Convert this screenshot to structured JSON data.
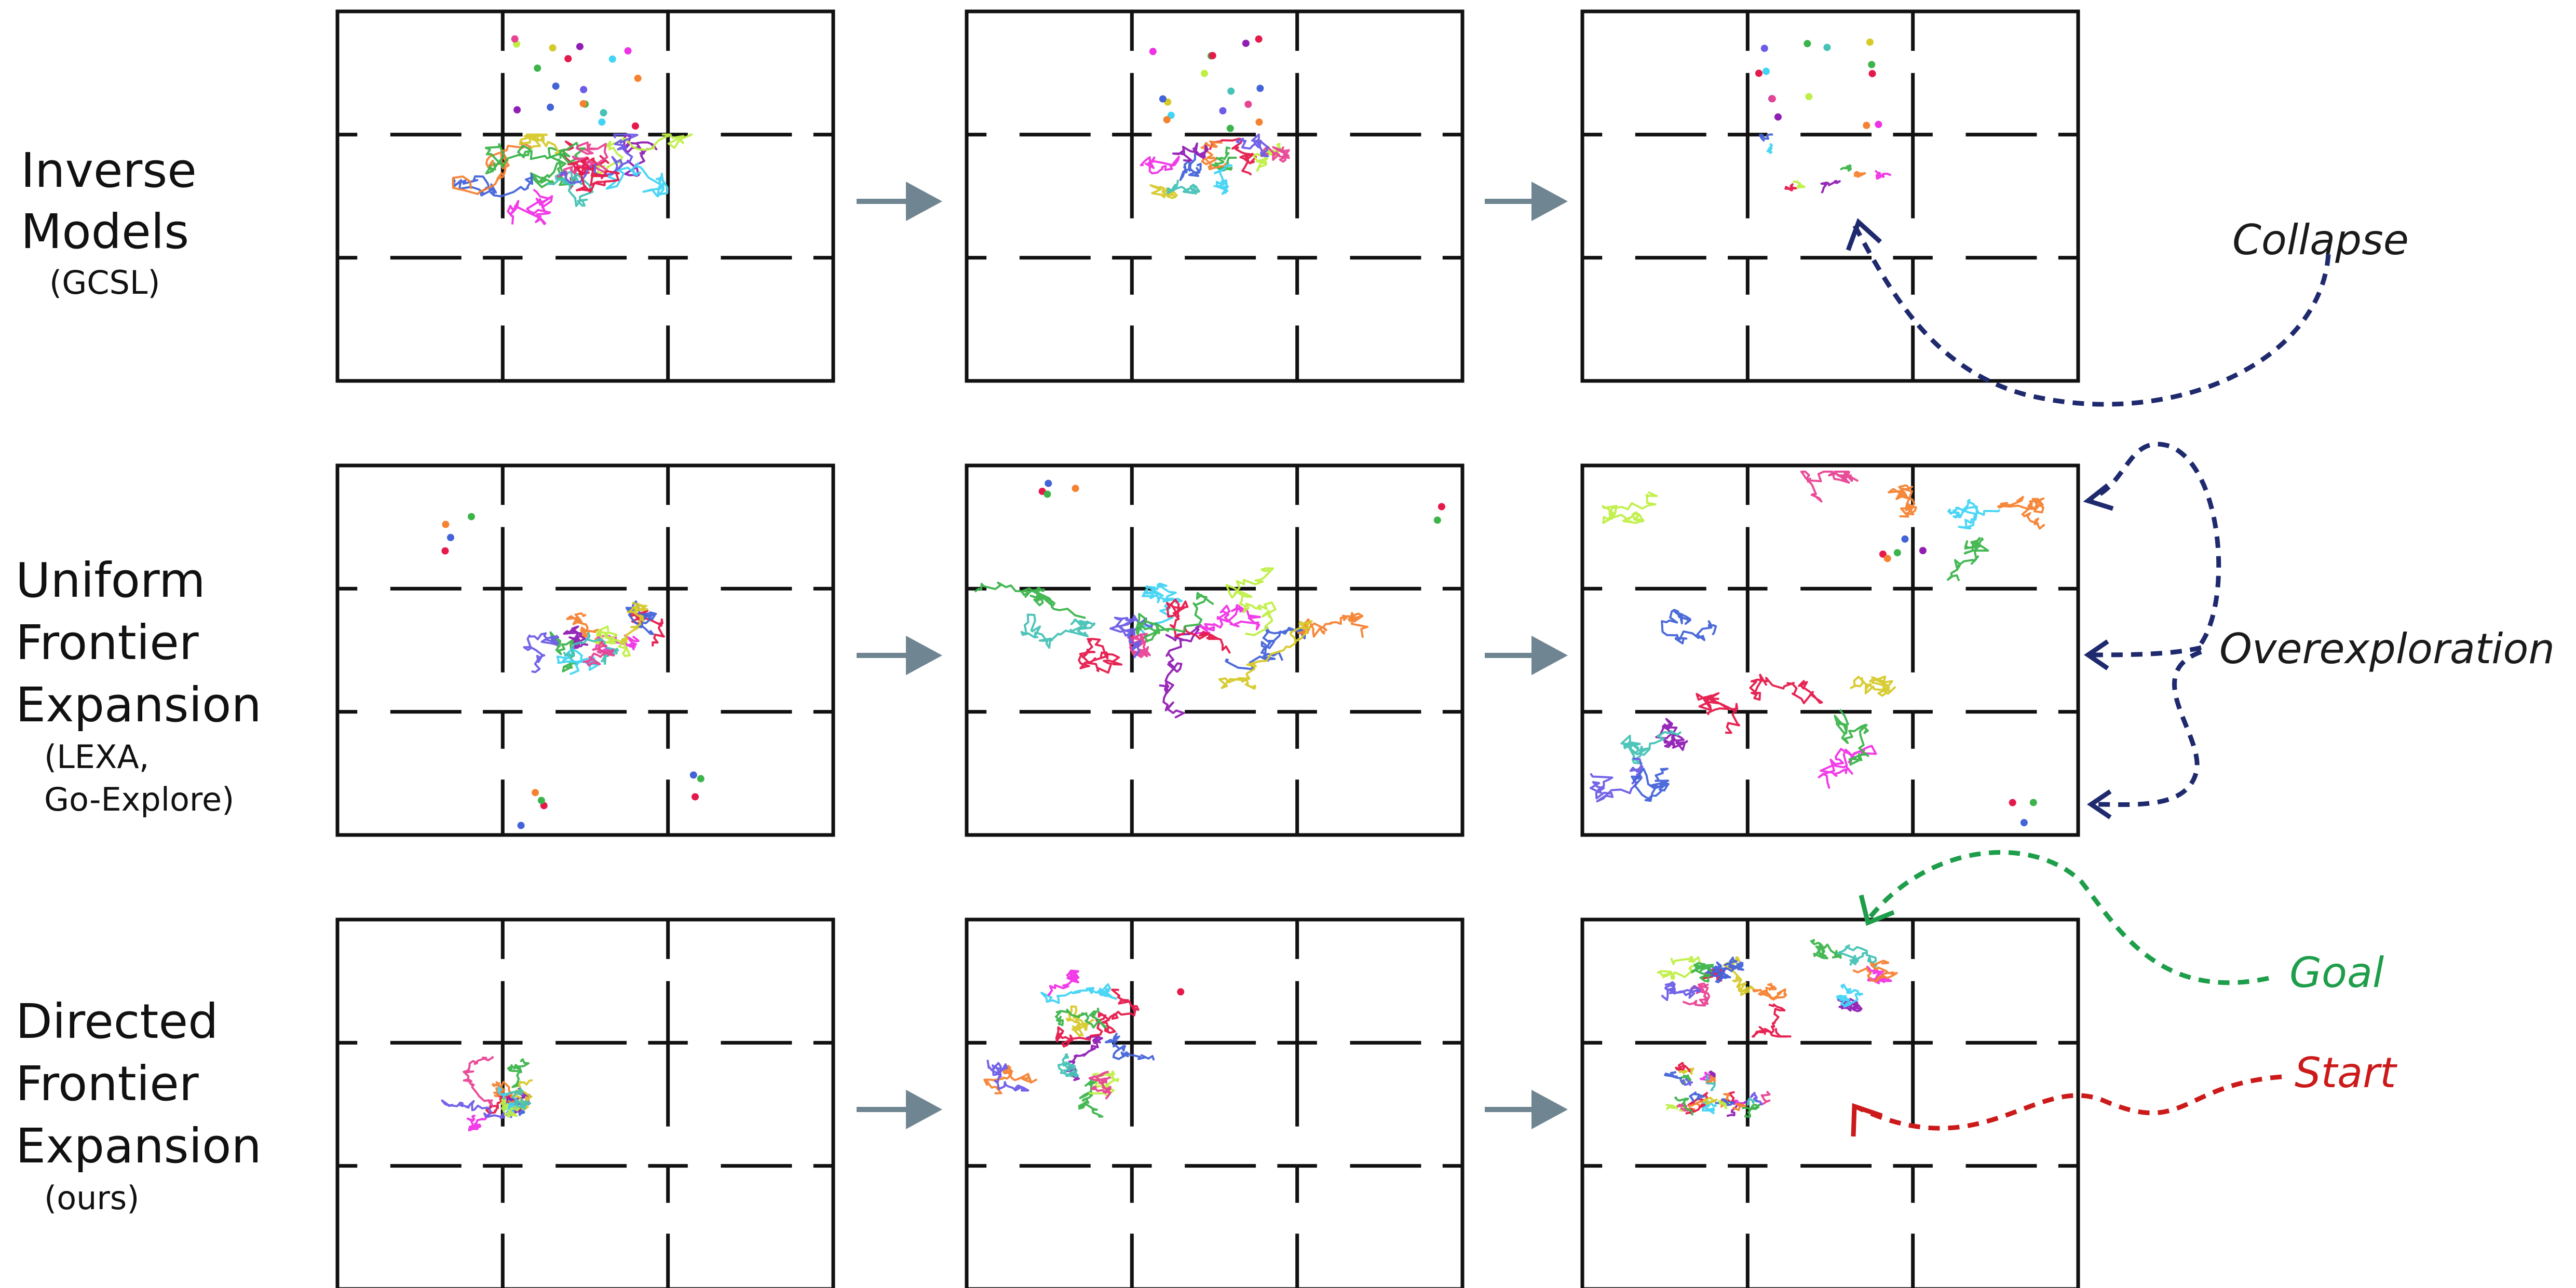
{
  "rows": [
    {
      "id": "inverse",
      "label_lines": [
        "Inverse",
        "Models"
      ],
      "sub_lines": [
        "(GCSL)"
      ],
      "mode": "collapse"
    },
    {
      "id": "uniform",
      "label_lines": [
        "Uniform",
        "Frontier",
        "Expansion"
      ],
      "sub_lines": [
        "(LEXA,",
        "Go-Explore)"
      ],
      "mode": "uniform"
    },
    {
      "id": "directed",
      "label_lines": [
        "Directed",
        "Frontier",
        "Expansion"
      ],
      "sub_lines": [
        "(ours)"
      ],
      "mode": "directed"
    }
  ],
  "annotations": {
    "collapse": "Collapse",
    "overexploration": "Overexploration",
    "goal": "Goal",
    "start": "Start"
  },
  "colors": {
    "trajectories": [
      "#e6194b",
      "#3cb44b",
      "#4363d8",
      "#f58231",
      "#911eb4",
      "#42d4f4",
      "#f032e6",
      "#bfef45",
      "#d6c92a",
      "#46c2b6",
      "#e84393",
      "#6c5ce7"
    ],
    "arrow": "#6f8591",
    "collapse_arrow": "#1f2a6e",
    "goal": "#1e9e4a",
    "start": "#cc1a1a"
  }
}
